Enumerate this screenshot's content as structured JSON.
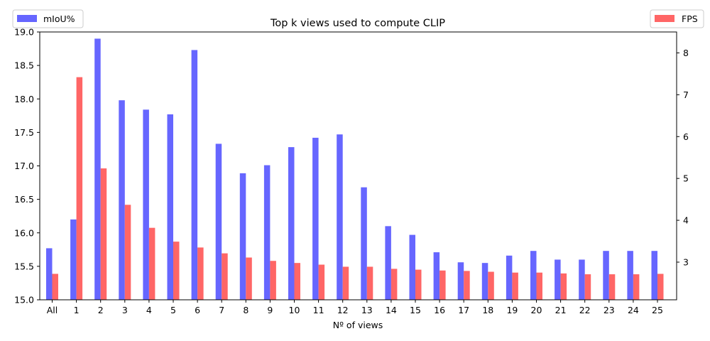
{
  "chart_data": {
    "type": "bar",
    "title": "Top k views used to compute CLIP",
    "xlabel": "Nº of views",
    "categories": [
      "All",
      "1",
      "2",
      "3",
      "4",
      "5",
      "6",
      "7",
      "8",
      "9",
      "10",
      "11",
      "12",
      "13",
      "14",
      "15",
      "16",
      "17",
      "18",
      "19",
      "20",
      "21",
      "22",
      "23",
      "24",
      "25"
    ],
    "left_axis": {
      "ylim": [
        15.0,
        19.0
      ],
      "ticks": [
        "15.0",
        "15.5",
        "16.0",
        "16.5",
        "17.0",
        "17.5",
        "18.0",
        "18.5",
        "19.0"
      ]
    },
    "right_axis": {
      "ylim": [
        2.1,
        8.5
      ],
      "ticks": [
        "3",
        "4",
        "5",
        "6",
        "7",
        "8"
      ]
    },
    "series": [
      {
        "name": "mIoU%",
        "axis": "left",
        "color": "#6666ff",
        "values": [
          15.77,
          16.2,
          18.9,
          17.98,
          17.84,
          17.77,
          18.73,
          17.33,
          16.89,
          17.01,
          17.28,
          17.42,
          17.47,
          16.68,
          16.1,
          15.97,
          15.71,
          15.56,
          15.55,
          15.66,
          15.73,
          15.6,
          15.6,
          15.73,
          15.73,
          15.73
        ]
      },
      {
        "name": "FPS",
        "axis": "right",
        "color": "#ff6666",
        "values": [
          2.72,
          7.42,
          5.24,
          4.37,
          3.82,
          3.49,
          3.35,
          3.21,
          3.11,
          3.03,
          2.98,
          2.94,
          2.89,
          2.89,
          2.84,
          2.82,
          2.8,
          2.79,
          2.77,
          2.75,
          2.75,
          2.73,
          2.71,
          2.71,
          2.71,
          2.72
        ]
      }
    ],
    "legends": {
      "left": "top-left",
      "right": "top-right"
    }
  }
}
